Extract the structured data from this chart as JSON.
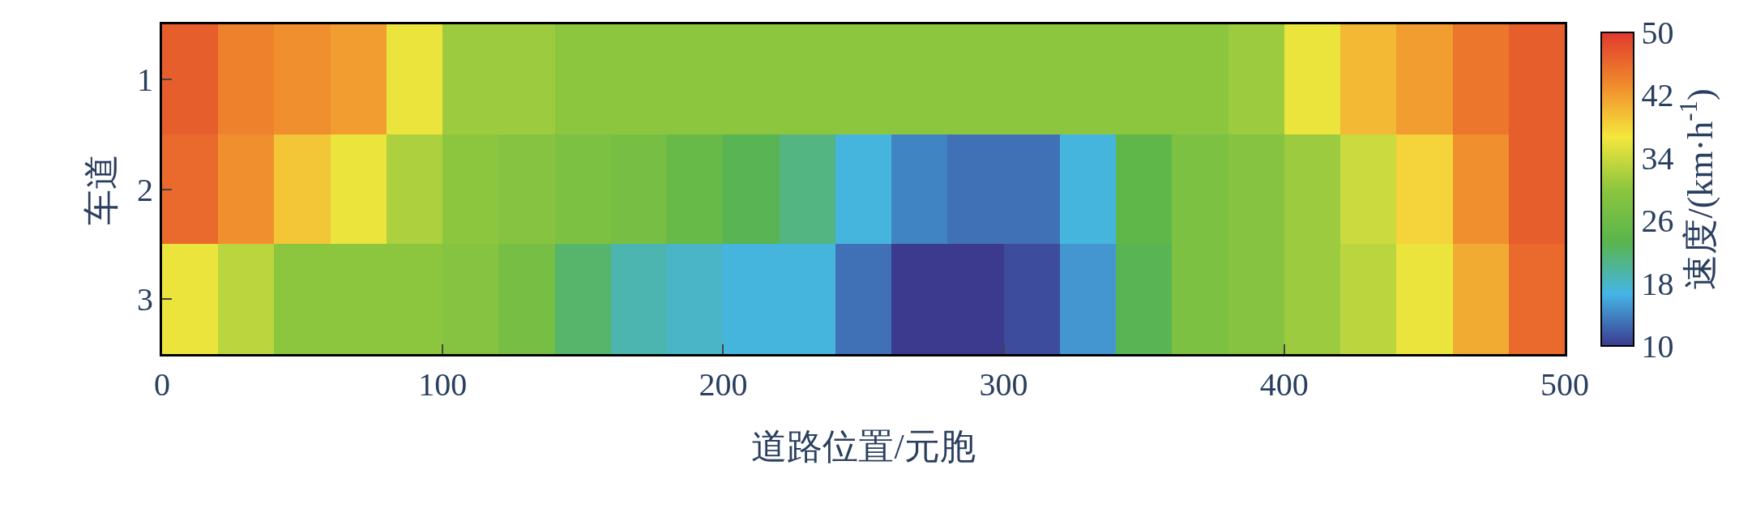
{
  "chart_data": {
    "type": "heatmap",
    "xlabel": "道路位置/元胞",
    "ylabel": "车道",
    "clabel": "速度/(km·h$^{-1}$)",
    "x": [
      10,
      30,
      50,
      70,
      90,
      110,
      130,
      150,
      170,
      190,
      210,
      230,
      250,
      270,
      290,
      310,
      330,
      350,
      370,
      390,
      410,
      430,
      450,
      470,
      490
    ],
    "y_categories": [
      "1",
      "2",
      "3"
    ],
    "cells": [
      [
        47,
        44,
        43,
        42,
        36,
        31,
        31,
        30,
        30,
        30,
        30,
        30,
        30,
        30,
        30,
        30,
        30,
        30,
        30,
        31,
        36,
        40,
        42,
        45,
        47
      ],
      [
        46,
        43,
        39,
        36,
        32,
        30,
        29,
        28,
        27,
        25,
        23,
        21,
        17,
        14,
        13,
        13,
        17,
        24,
        28,
        29,
        31,
        34,
        38,
        43,
        47
      ],
      [
        36,
        33,
        30,
        30,
        30,
        29,
        27,
        22,
        19,
        18,
        17,
        17,
        13,
        10,
        10,
        11,
        15,
        23,
        28,
        29,
        31,
        33,
        36,
        41,
        46
      ]
    ],
    "xlim": [
      0,
      500
    ],
    "xticks": [
      0,
      100,
      200,
      300,
      400,
      500
    ],
    "clim": [
      10,
      50
    ],
    "cticks": [
      10,
      18,
      26,
      34,
      42,
      50
    ],
    "colors": [
      "#3b3a8f",
      "#45b5e6",
      "#5ab54b",
      "#8cc63f",
      "#f5e73d",
      "#f08a2c",
      "#e03a2e"
    ]
  }
}
